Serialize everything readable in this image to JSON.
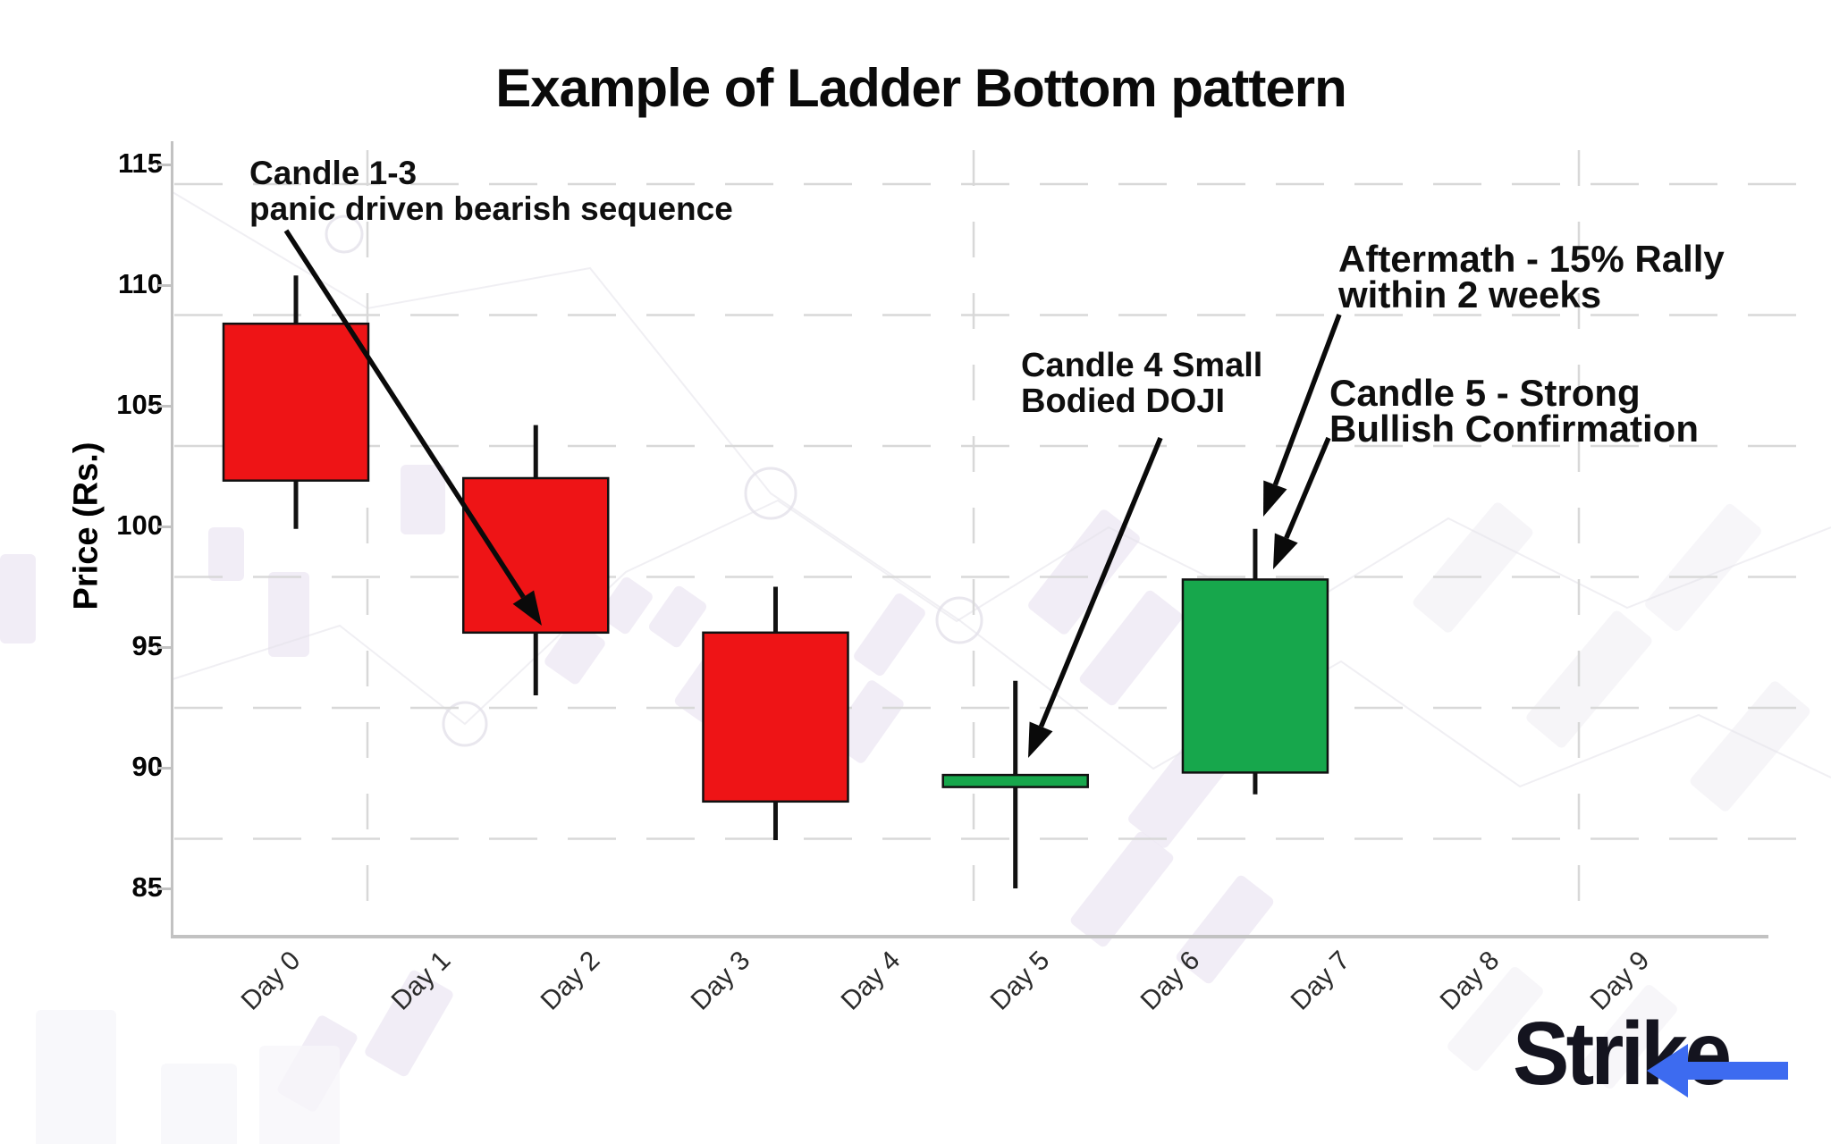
{
  "title": "Example of Ladder Bottom pattern",
  "y_axis": {
    "label": "Price (Rs.)",
    "ticks": [
      115,
      110,
      105,
      100,
      95,
      90,
      85
    ]
  },
  "x_axis": {
    "tick_labels": [
      "Day 0",
      "Day 1",
      "Day 2",
      "Day 3",
      "Day 4",
      "Day 5",
      "Day 6",
      "Day 7",
      "Day 8",
      "Day 9"
    ]
  },
  "annotations": [
    {
      "id": "candle13",
      "lines": [
        "Candle 1-3",
        "panic driven bearish sequence"
      ]
    },
    {
      "id": "doji",
      "lines": [
        "Candle 4 Small",
        "Bodied DOJI"
      ]
    },
    {
      "id": "aftermath",
      "lines": [
        "Aftermath - 15% Rally",
        "within 2 weeks"
      ]
    },
    {
      "id": "confirmation",
      "lines": [
        "Candle 5 - Strong",
        "Bullish Confirmation"
      ]
    }
  ],
  "logo": {
    "text": "Strike"
  },
  "colors": {
    "bearish": "#ee1416",
    "bullish": "#17a74c",
    "candle_outline": "#111111",
    "grid": "#d8d8d8",
    "axis": "#c2c2c2",
    "annotation_text": "#0f0f0f",
    "logo_text": "#14141f",
    "logo_blue": "#3d6bf0",
    "watermark": "#ece7f3"
  },
  "chart_data": {
    "type": "candlestick",
    "title": "Example of Ladder Bottom pattern",
    "xlabel": "",
    "ylabel": "Price (Rs.)",
    "x_tick_labels": [
      "Day 0",
      "Day 1",
      "Day 2",
      "Day 3",
      "Day 4",
      "Day 5",
      "Day 6",
      "Day 7",
      "Day 8",
      "Day 9"
    ],
    "ylim": [
      83,
      116
    ],
    "xlim": [
      -0.82,
      9.82
    ],
    "grid": "dashed",
    "legend_position": "none",
    "candles": [
      {
        "x": 0.0,
        "open": 108.4,
        "high": 110.4,
        "low": 99.9,
        "close": 101.9,
        "direction": "bearish"
      },
      {
        "x": 1.6,
        "open": 102.0,
        "high": 104.2,
        "low": 93.0,
        "close": 95.6,
        "direction": "bearish"
      },
      {
        "x": 3.2,
        "open": 95.6,
        "high": 97.5,
        "low": 87.0,
        "close": 88.6,
        "direction": "bearish"
      },
      {
        "x": 4.8,
        "open": 89.2,
        "high": 93.6,
        "low": 85.0,
        "close": 89.7,
        "direction": "bullish"
      },
      {
        "x": 6.4,
        "open": 89.8,
        "high": 99.9,
        "low": 88.9,
        "close": 97.8,
        "direction": "bullish"
      }
    ]
  }
}
